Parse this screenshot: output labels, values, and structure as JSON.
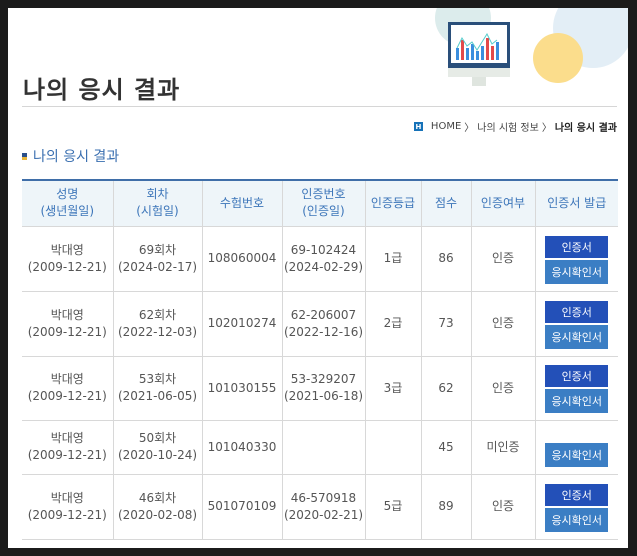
{
  "page_title": "나의 응시 결과",
  "breadcrumb": {
    "icon": "home-icon",
    "items": [
      "HOME",
      "나의 시험 정보",
      "나의 응시 결과"
    ]
  },
  "section_title": "나의 응시 결과",
  "table": {
    "headers": [
      [
        "성명",
        "(생년월일)"
      ],
      [
        "회차",
        "(시험일)"
      ],
      [
        "수험번호",
        ""
      ],
      [
        "인증번호",
        "(인증일)"
      ],
      [
        "인증등급",
        ""
      ],
      [
        "점수",
        ""
      ],
      [
        "인증여부",
        ""
      ],
      [
        "인증서 발급",
        ""
      ]
    ],
    "rows": [
      {
        "name": "박대영",
        "birth": "(2009-12-21)",
        "round": "69회차",
        "exam_date": "(2024-02-17)",
        "exam_no": "108060004",
        "cert_no": "69-102424",
        "cert_date": "(2024-02-29)",
        "grade": "1급",
        "score": "86",
        "status": "인증",
        "cert_btn": "인증서",
        "confirm_btn": "응시확인서"
      },
      {
        "name": "박대영",
        "birth": "(2009-12-21)",
        "round": "62회차",
        "exam_date": "(2022-12-03)",
        "exam_no": "102010274",
        "cert_no": "62-206007",
        "cert_date": "(2022-12-16)",
        "grade": "2급",
        "score": "73",
        "status": "인증",
        "cert_btn": "인증서",
        "confirm_btn": "응시확인서"
      },
      {
        "name": "박대영",
        "birth": "(2009-12-21)",
        "round": "53회차",
        "exam_date": "(2021-06-05)",
        "exam_no": "101030155",
        "cert_no": "53-329207",
        "cert_date": "(2021-06-18)",
        "grade": "3급",
        "score": "62",
        "status": "인증",
        "cert_btn": "인증서",
        "confirm_btn": "응시확인서"
      },
      {
        "name": "박대영",
        "birth": "(2009-12-21)",
        "round": "50회차",
        "exam_date": "(2020-10-24)",
        "exam_no": "101040330",
        "cert_no": "",
        "cert_date": "",
        "grade": "",
        "score": "45",
        "status": "미인증",
        "cert_btn": null,
        "confirm_btn": "응시확인서"
      },
      {
        "name": "박대영",
        "birth": "(2009-12-21)",
        "round": "46회차",
        "exam_date": "(2020-02-08)",
        "exam_no": "501070109",
        "cert_no": "46-570918",
        "cert_date": "(2020-02-21)",
        "grade": "5급",
        "score": "89",
        "status": "인증",
        "cert_btn": "인증서",
        "confirm_btn": "응시확인서"
      }
    ]
  },
  "colors": {
    "header_text": "#3c75b9",
    "cert_button": "#2350b8",
    "confirm_button": "#3b7ec4"
  }
}
